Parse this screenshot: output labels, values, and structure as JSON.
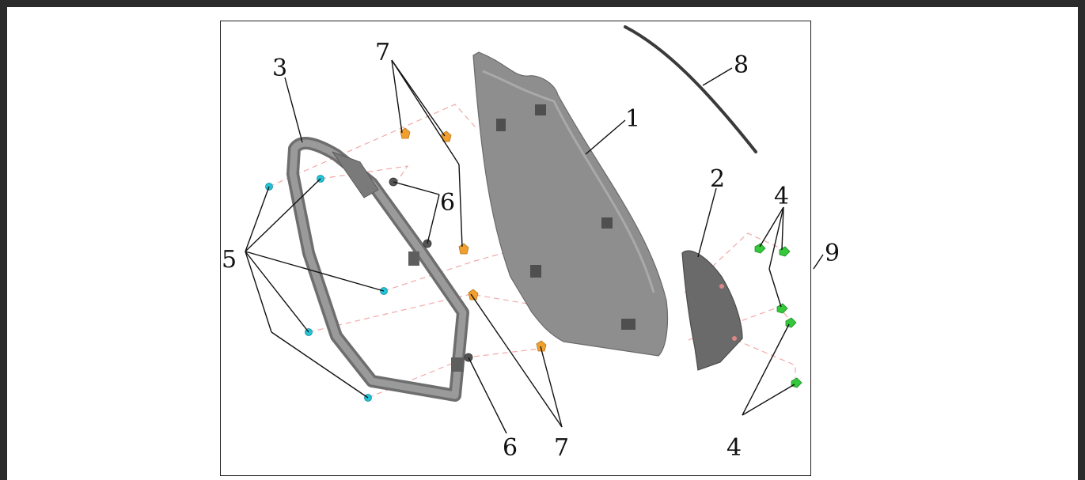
{
  "callouts": {
    "c1": "1",
    "c2": "2",
    "c3": "3",
    "c4a": "4",
    "c4b": "4",
    "c5": "5",
    "c6a": "6",
    "c6b": "6",
    "c7a": "7",
    "c7b": "7",
    "c8": "8",
    "c9": "9"
  },
  "colors": {
    "frame_border": "#2b2b2b",
    "part_gray": "#8a8a8a",
    "part_dark": "#5e5e5e",
    "clip_orange": "#f0a030",
    "screw_cyan": "#22c4d8",
    "clip_green": "#34c83a",
    "dashed_line": "#f2a8a8"
  }
}
